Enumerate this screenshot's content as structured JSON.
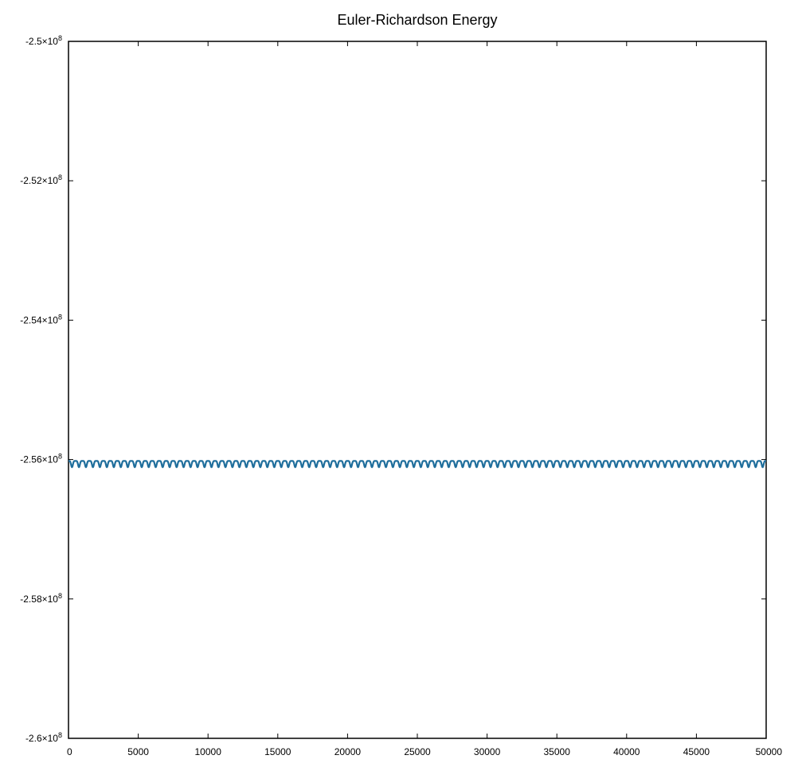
{
  "chart_data": {
    "type": "line",
    "title": "Euler-Richardson Energy",
    "xlabel": "",
    "ylabel": "",
    "xlim": [
      0,
      50000
    ],
    "ylim": [
      -260000000.0,
      -250000000.0
    ],
    "x_ticks": [
      0,
      5000,
      10000,
      15000,
      20000,
      25000,
      30000,
      35000,
      40000,
      45000,
      50000
    ],
    "x_tick_labels": [
      "0",
      "5000",
      "10000",
      "15000",
      "20000",
      "25000",
      "30000",
      "35000",
      "40000",
      "45000",
      "50000"
    ],
    "y_ticks": [
      {
        "value": -250000000.0,
        "mantissa": "-2.5",
        "base": "×10",
        "exponent": "8"
      },
      {
        "value": -252000000.0,
        "mantissa": "-2.52",
        "base": "×10",
        "exponent": "8"
      },
      {
        "value": -254000000.0,
        "mantissa": "-2.54",
        "base": "×10",
        "exponent": "8"
      },
      {
        "value": -256000000.0,
        "mantissa": "-2.56",
        "base": "×10",
        "exponent": "8"
      },
      {
        "value": -258000000.0,
        "mantissa": "-2.58",
        "base": "×10",
        "exponent": "8"
      },
      {
        "value": -260000000.0,
        "mantissa": "-2.6",
        "base": "×10",
        "exponent": "8"
      }
    ],
    "grid": false,
    "legend": "none",
    "series": [
      {
        "color": "#1f6e9c",
        "baseline": -256020000.0,
        "oscillation_amplitude": 90000,
        "oscillation_period": 500,
        "note_shape": "periodic oscillation with dips below baseline"
      }
    ]
  }
}
